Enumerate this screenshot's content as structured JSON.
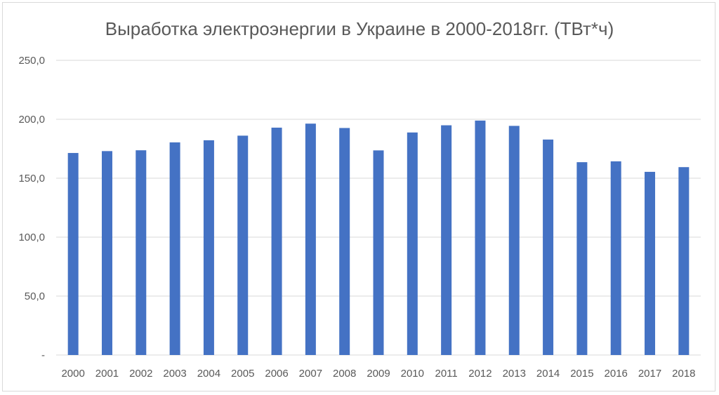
{
  "chart_data": {
    "type": "bar",
    "title": "Выработка электроэнергии в Украине в 2000-2018гг. (ТВт*ч)",
    "xlabel": "",
    "ylabel": "",
    "categories": [
      "2000",
      "2001",
      "2002",
      "2003",
      "2004",
      "2005",
      "2006",
      "2007",
      "2008",
      "2009",
      "2010",
      "2011",
      "2012",
      "2013",
      "2014",
      "2015",
      "2016",
      "2017",
      "2018"
    ],
    "values": [
      171.4,
      173.0,
      173.7,
      180.4,
      182.2,
      186.1,
      192.9,
      196.3,
      192.6,
      173.6,
      188.8,
      194.9,
      198.9,
      194.4,
      182.8,
      163.6,
      164.3,
      155.4,
      159.4
    ],
    "ylim": [
      0,
      250
    ],
    "yticks": [
      0,
      50,
      100,
      150,
      200,
      250
    ],
    "ytick_labels": [
      "-",
      "50,0",
      "100,0",
      "150,0",
      "200,0",
      "250,0"
    ],
    "grid": true,
    "legend": "none",
    "bar_color": "#4472c4",
    "grid_color": "#d9d9d9",
    "text_color": "#595959"
  }
}
